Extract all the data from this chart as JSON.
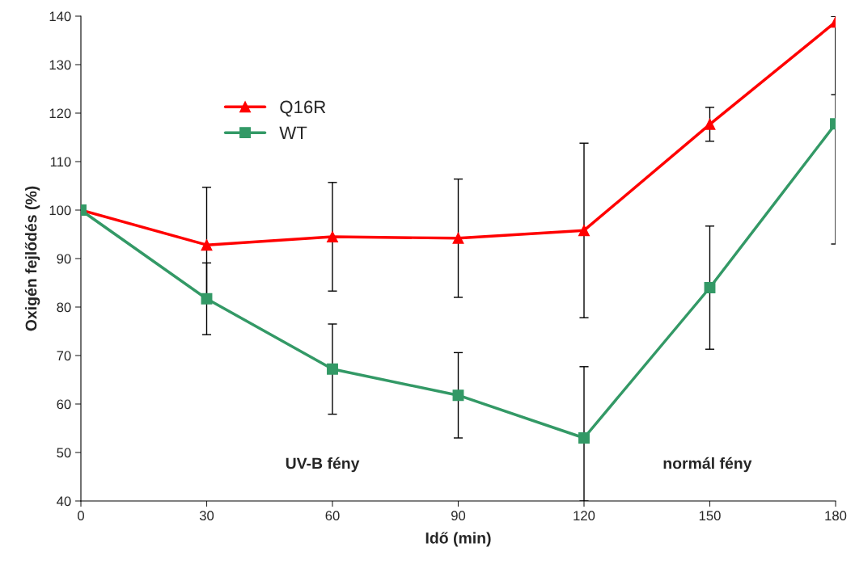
{
  "chart_data": {
    "type": "line",
    "xlabel": "Idő (min)",
    "ylabel": "Oxigén fejlődés (%)",
    "x": [
      0,
      30,
      60,
      90,
      120,
      150,
      180
    ],
    "series": [
      {
        "name": "Q16R",
        "color": "#ff0000",
        "marker": "triangle",
        "values": [
          100,
          92.8,
          94.5,
          94.2,
          95.8,
          117.7,
          138.8
        ],
        "errors": [
          null,
          11.9,
          11.2,
          12.2,
          18,
          3.5,
          [
            123.8,
            140
          ]
        ]
      },
      {
        "name": "WT",
        "color": "#339966",
        "marker": "square",
        "values": [
          100,
          81.7,
          67.2,
          61.8,
          53,
          84,
          117.8
        ],
        "errors": [
          null,
          7.4,
          9.3,
          8.8,
          [
            40,
            67.7
          ],
          12.7,
          [
            93,
            140
          ]
        ]
      }
    ],
    "xlim": [
      0,
      180
    ],
    "xticks": [
      0,
      30,
      60,
      90,
      120,
      150,
      180
    ],
    "ylim": [
      40,
      140
    ],
    "yticks": [
      40,
      50,
      60,
      70,
      80,
      90,
      100,
      110,
      120,
      130,
      140
    ],
    "grid": false,
    "legend": "top left",
    "annotations": [
      "UV-B fény",
      "normál fény"
    ]
  }
}
